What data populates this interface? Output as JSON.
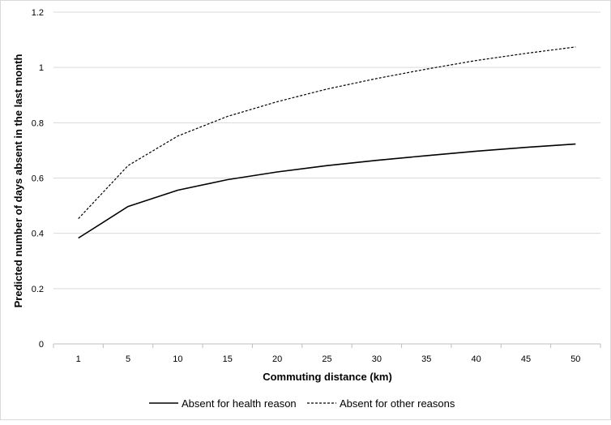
{
  "chart_data": {
    "type": "line",
    "title": "",
    "xlabel": "Commuting distance (km)",
    "ylabel": "Predicted number of days absent in the last month",
    "categories": [
      "1",
      "5",
      "10",
      "15",
      "20",
      "25",
      "30",
      "35",
      "40",
      "45",
      "50"
    ],
    "ylim": [
      0,
      1.2
    ],
    "yticks": [
      "0",
      "0.2",
      "0.4",
      "0.6",
      "0.8",
      "1",
      "1.2"
    ],
    "grid": true,
    "legend_position": "bottom",
    "series": [
      {
        "name": "Absent for health reason",
        "style": "solid",
        "values": [
          0.383,
          0.497,
          0.556,
          0.594,
          0.622,
          0.645,
          0.664,
          0.681,
          0.697,
          0.711,
          0.723
        ]
      },
      {
        "name": "Absent for other reasons",
        "style": "dashed",
        "values": [
          0.453,
          0.645,
          0.752,
          0.823,
          0.876,
          0.922,
          0.96,
          0.994,
          1.025,
          1.051,
          1.074
        ]
      }
    ]
  }
}
